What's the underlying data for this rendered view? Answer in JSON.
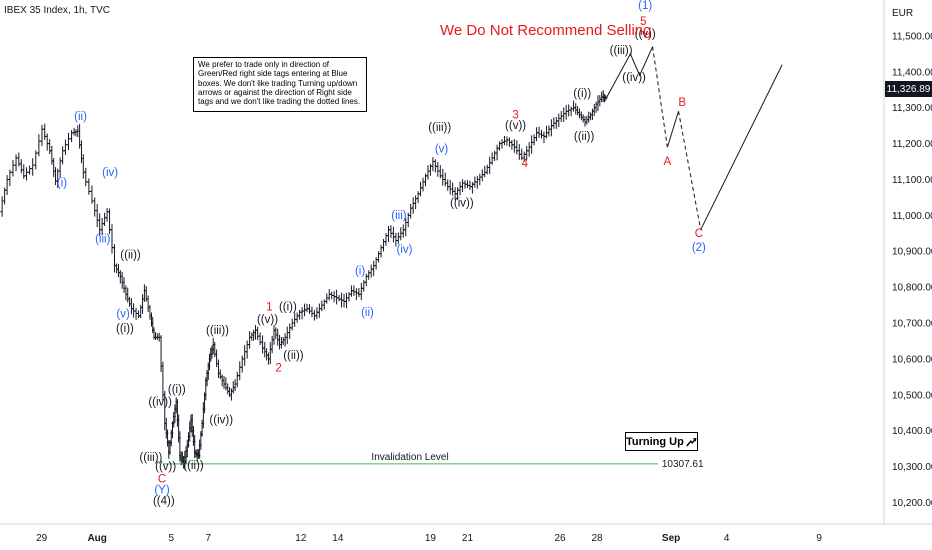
{
  "chart_title": "IBEX 35 Index, 1h, TVC",
  "annotation_title": "We Do Not Recommend Selling",
  "note_text": "We prefer to trade only in direction of Green/Red right side tags entering at Blue boxes. We don't like trading Turning up/down arrows or against the direction of Right side tags and we don't like trading the dotted lines.",
  "turning_label": "Turning Up",
  "turning_icon": "arrow-up-right-icon",
  "currency": "EUR",
  "last_price_label": "11,326.89",
  "invalidation_label": "Invalidation Level",
  "invalidation_value_label": "10307.61",
  "colors": {
    "black_label": "#131722",
    "blue_label": "#2962ff",
    "red_label": "#e8181e",
    "invalidation_line": "#4caf50",
    "price_bars": "#131722",
    "projection": "#131722"
  },
  "chart_data": {
    "type": "ohlc",
    "title": "IBEX 35 Index, 1h, TVC",
    "y_unit": "EUR",
    "ylim": [
      10140,
      11600
    ],
    "y_ticks": [
      "10,200.00",
      "10,300.00",
      "10,400.00",
      "10,500.00",
      "10,600.00",
      "10,700.00",
      "10,800.00",
      "10,900.00",
      "11,000.00",
      "11,100.00",
      "11,200.00",
      "11,300.00",
      "11,400.00",
      "11,500.00"
    ],
    "y_tick_values": [
      10200,
      10300,
      10400,
      10500,
      10600,
      10700,
      10800,
      10900,
      11000,
      11100,
      11200,
      11300,
      11400,
      11500
    ],
    "x_ticks": [
      "29",
      "Aug",
      "5",
      "7",
      "12",
      "14",
      "19",
      "21",
      "26",
      "28",
      "Sep",
      "4",
      "9"
    ],
    "x_tick_days": [
      -3,
      0,
      4,
      6,
      11,
      13,
      18,
      20,
      25,
      27,
      31,
      34,
      39
    ],
    "x_domain_days": [
      -5.25,
      42.5
    ],
    "last_price": 11326.89,
    "invalidation_level": 10307.61,
    "price_path": [
      [
        -5.2,
        11010
      ],
      [
        -4.8,
        11100
      ],
      [
        -4.3,
        11160
      ],
      [
        -3.9,
        11110
      ],
      [
        -3.4,
        11140
      ],
      [
        -2.9,
        11240
      ],
      [
        -2.5,
        11180
      ],
      [
        -2.2,
        11095
      ],
      [
        -1.8,
        11180
      ],
      [
        -1.3,
        11230
      ],
      [
        -1.0,
        11235
      ],
      [
        -0.7,
        11120
      ],
      [
        -0.2,
        11040
      ],
      [
        0.2,
        10960
      ],
      [
        0.6,
        11010
      ],
      [
        1.0,
        10860
      ],
      [
        1.3,
        10830
      ],
      [
        1.6,
        10780
      ],
      [
        1.9,
        10740
      ],
      [
        2.3,
        10720
      ],
      [
        2.6,
        10790
      ],
      [
        2.9,
        10720
      ],
      [
        3.1,
        10660
      ],
      [
        3.4,
        10660
      ],
      [
        3.7,
        10420
      ],
      [
        3.9,
        10340
      ],
      [
        4.1,
        10420
      ],
      [
        4.3,
        10480
      ],
      [
        4.5,
        10330
      ],
      [
        4.7,
        10310
      ],
      [
        4.9,
        10360
      ],
      [
        5.1,
        10430
      ],
      [
        5.3,
        10340
      ],
      [
        5.5,
        10330
      ],
      [
        5.7,
        10420
      ],
      [
        5.9,
        10540
      ],
      [
        6.1,
        10600
      ],
      [
        6.3,
        10640
      ],
      [
        6.6,
        10560
      ],
      [
        6.9,
        10530
      ],
      [
        7.2,
        10500
      ],
      [
        7.5,
        10530
      ],
      [
        7.9,
        10600
      ],
      [
        8.3,
        10660
      ],
      [
        8.6,
        10680
      ],
      [
        9.0,
        10630
      ],
      [
        9.3,
        10600
      ],
      [
        9.6,
        10680
      ],
      [
        9.9,
        10640
      ],
      [
        10.2,
        10660
      ],
      [
        10.6,
        10700
      ],
      [
        11.0,
        10730
      ],
      [
        11.4,
        10740
      ],
      [
        11.8,
        10720
      ],
      [
        12.2,
        10750
      ],
      [
        12.6,
        10780
      ],
      [
        13.0,
        10770
      ],
      [
        13.4,
        10760
      ],
      [
        13.8,
        10790
      ],
      [
        14.2,
        10780
      ],
      [
        14.6,
        10830
      ],
      [
        15.0,
        10860
      ],
      [
        15.4,
        10910
      ],
      [
        15.8,
        10960
      ],
      [
        16.2,
        10930
      ],
      [
        16.6,
        10960
      ],
      [
        17.0,
        11020
      ],
      [
        17.4,
        11060
      ],
      [
        17.8,
        11110
      ],
      [
        18.2,
        11150
      ],
      [
        18.6,
        11110
      ],
      [
        19.0,
        11080
      ],
      [
        19.4,
        11060
      ],
      [
        19.8,
        11090
      ],
      [
        20.2,
        11080
      ],
      [
        20.6,
        11100
      ],
      [
        21.0,
        11120
      ],
      [
        21.4,
        11160
      ],
      [
        21.8,
        11200
      ],
      [
        22.2,
        11210
      ],
      [
        22.6,
        11190
      ],
      [
        23.0,
        11160
      ],
      [
        23.4,
        11190
      ],
      [
        23.8,
        11230
      ],
      [
        24.2,
        11220
      ],
      [
        24.6,
        11250
      ],
      [
        25.0,
        11270
      ],
      [
        25.4,
        11290
      ],
      [
        25.8,
        11300
      ],
      [
        26.1,
        11280
      ],
      [
        26.4,
        11260
      ],
      [
        26.7,
        11280
      ],
      [
        27.0,
        11310
      ],
      [
        27.3,
        11330
      ],
      [
        27.5,
        11326.89
      ]
    ],
    "projection_solid": [
      [
        27.5,
        11326.89
      ],
      [
        28.8,
        11450
      ],
      [
        29.3,
        11390
      ],
      [
        30.0,
        11470
      ]
    ],
    "projection_dashed": [
      [
        30.0,
        11470
      ],
      [
        30.8,
        11190
      ]
    ],
    "projection_solid_2": [
      [
        30.8,
        11190
      ],
      [
        31.4,
        11290
      ]
    ],
    "projection_dashed_2": [
      [
        31.4,
        11290
      ],
      [
        32.6,
        10960
      ]
    ],
    "projection_solid_3": [
      [
        32.6,
        10960
      ],
      [
        37.0,
        11420
      ]
    ],
    "wave_labels": [
      {
        "text": "(i)",
        "color": "blue",
        "x": -1.9,
        "y": 11080
      },
      {
        "text": "(ii)",
        "color": "blue",
        "x": -0.9,
        "y": 11265
      },
      {
        "text": "(iii)",
        "color": "blue",
        "x": 0.3,
        "y": 10925
      },
      {
        "text": "(iv)",
        "color": "blue",
        "x": 0.7,
        "y": 11110
      },
      {
        "text": "(v)",
        "color": "blue",
        "x": 1.4,
        "y": 10715
      },
      {
        "text": "((ii))",
        "color": "black",
        "x": 1.8,
        "y": 10880
      },
      {
        "text": "((i))",
        "color": "black",
        "x": 1.5,
        "y": 10675
      },
      {
        "text": "((iv))",
        "color": "black",
        "x": 3.4,
        "y": 10470
      },
      {
        "text": "((i))",
        "color": "black",
        "x": 4.3,
        "y": 10505
      },
      {
        "text": "((iii))",
        "color": "black",
        "x": 2.9,
        "y": 10315
      },
      {
        "text": "((v))",
        "color": "black",
        "x": 3.7,
        "y": 10290
      },
      {
        "text": "C",
        "color": "red",
        "x": 3.5,
        "y": 10255
      },
      {
        "text": "(Y)",
        "color": "blue",
        "x": 3.5,
        "y": 10225
      },
      {
        "text": "((4))",
        "color": "black",
        "x": 3.6,
        "y": 10195
      },
      {
        "text": "((ii))",
        "color": "black",
        "x": 5.2,
        "y": 10293
      },
      {
        "text": "((iii))",
        "color": "black",
        "x": 6.5,
        "y": 10670
      },
      {
        "text": "((iv))",
        "color": "black",
        "x": 6.7,
        "y": 10420
      },
      {
        "text": "1",
        "color": "red",
        "x": 9.3,
        "y": 10735
      },
      {
        "text": "((v))",
        "color": "black",
        "x": 9.2,
        "y": 10700
      },
      {
        "text": "((i))",
        "color": "black",
        "x": 10.3,
        "y": 10735
      },
      {
        "text": "2",
        "color": "red",
        "x": 9.8,
        "y": 10565
      },
      {
        "text": "((ii))",
        "color": "black",
        "x": 10.6,
        "y": 10600
      },
      {
        "text": "(i)",
        "color": "blue",
        "x": 14.2,
        "y": 10835
      },
      {
        "text": "(ii)",
        "color": "blue",
        "x": 14.6,
        "y": 10720
      },
      {
        "text": "(iii)",
        "color": "blue",
        "x": 16.3,
        "y": 10990
      },
      {
        "text": "(iv)",
        "color": "blue",
        "x": 16.6,
        "y": 10895
      },
      {
        "text": "((iii))",
        "color": "black",
        "x": 18.5,
        "y": 11235
      },
      {
        "text": "(v)",
        "color": "blue",
        "x": 18.6,
        "y": 11175
      },
      {
        "text": "((iv))",
        "color": "black",
        "x": 19.7,
        "y": 11025
      },
      {
        "text": "3",
        "color": "red",
        "x": 22.6,
        "y": 11270
      },
      {
        "text": "((v))",
        "color": "black",
        "x": 22.6,
        "y": 11240
      },
      {
        "text": "4",
        "color": "red",
        "x": 23.1,
        "y": 11135
      },
      {
        "text": "((i))",
        "color": "black",
        "x": 26.2,
        "y": 11330
      },
      {
        "text": "((ii))",
        "color": "black",
        "x": 26.3,
        "y": 11210
      },
      {
        "text": "((iii))",
        "color": "black",
        "x": 28.3,
        "y": 11450
      },
      {
        "text": "((iv))",
        "color": "black",
        "x": 29.0,
        "y": 11375
      },
      {
        "text": "((v))",
        "color": "black",
        "x": 29.6,
        "y": 11495
      },
      {
        "text": "5",
        "color": "red",
        "x": 29.5,
        "y": 11530
      },
      {
        "text": "(1)",
        "color": "blue",
        "x": 29.6,
        "y": 11575
      },
      {
        "text": "B",
        "color": "red",
        "x": 31.6,
        "y": 11305
      },
      {
        "text": "A",
        "color": "red",
        "x": 30.8,
        "y": 11140
      },
      {
        "text": "C",
        "color": "red",
        "x": 32.5,
        "y": 10940
      },
      {
        "text": "(2)",
        "color": "blue",
        "x": 32.5,
        "y": 10900
      }
    ]
  }
}
